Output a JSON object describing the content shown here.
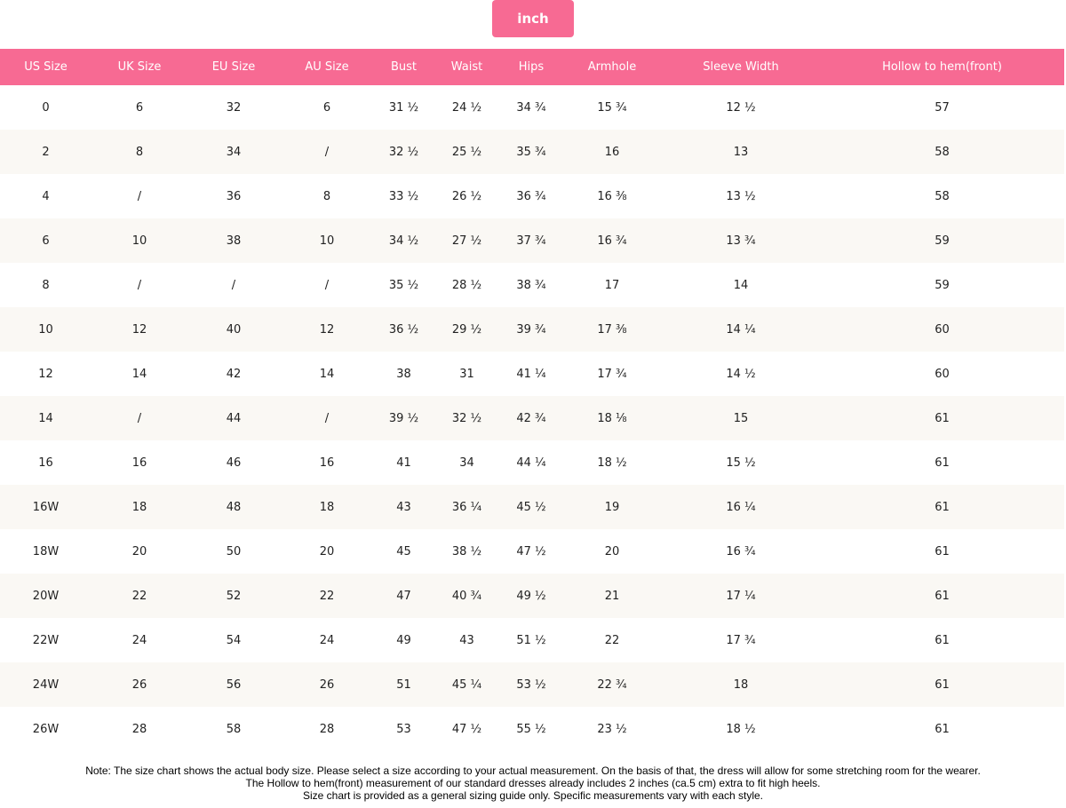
{
  "unit_button": "inch",
  "headers": [
    "US Size",
    "UK Size",
    "EU Size",
    "AU Size",
    "Bust",
    "Waist",
    "Hips",
    "Armhole",
    "Sleeve Width",
    "Hollow to hem(front)"
  ],
  "rows": [
    [
      "0",
      "6",
      "32",
      "6",
      "31 ½",
      "24 ½",
      "34 ¾",
      "15 ¾",
      "12 ½",
      "57"
    ],
    [
      "2",
      "8",
      "34",
      "/",
      "32 ½",
      "25 ½",
      "35 ¾",
      "16",
      "13",
      "58"
    ],
    [
      "4",
      "/",
      "36",
      "8",
      "33 ½",
      "26 ½",
      "36 ¾",
      "16 ⅜",
      "13 ½",
      "58"
    ],
    [
      "6",
      "10",
      "38",
      "10",
      "34 ½",
      "27 ½",
      "37 ¾",
      "16 ¾",
      "13 ¾",
      "59"
    ],
    [
      "8",
      "/",
      "/",
      "/",
      "35 ½",
      "28 ½",
      "38 ¾",
      "17",
      "14",
      "59"
    ],
    [
      "10",
      "12",
      "40",
      "12",
      "36 ½",
      "29 ½",
      "39 ¾",
      "17 ⅜",
      "14 ¼",
      "60"
    ],
    [
      "12",
      "14",
      "42",
      "14",
      "38",
      "31",
      "41 ¼",
      "17 ¾",
      "14 ½",
      "60"
    ],
    [
      "14",
      "/",
      "44",
      "/",
      "39 ½",
      "32 ½",
      "42 ¾",
      "18 ⅛",
      "15",
      "61"
    ],
    [
      "16",
      "16",
      "46",
      "16",
      "41",
      "34",
      "44 ¼",
      "18 ½",
      "15 ½",
      "61"
    ],
    [
      "16W",
      "18",
      "48",
      "18",
      "43",
      "36 ¼",
      "45 ½",
      "19",
      "16 ¼",
      "61"
    ],
    [
      "18W",
      "20",
      "50",
      "20",
      "45",
      "38 ½",
      "47 ½",
      "20",
      "16 ¾",
      "61"
    ],
    [
      "20W",
      "22",
      "52",
      "22",
      "47",
      "40 ¾",
      "49 ½",
      "21",
      "17 ¼",
      "61"
    ],
    [
      "22W",
      "24",
      "54",
      "24",
      "49",
      "43",
      "51 ½",
      "22",
      "17 ¾",
      "61"
    ],
    [
      "24W",
      "26",
      "56",
      "26",
      "51",
      "45 ¼",
      "53 ½",
      "22 ¾",
      "18",
      "61"
    ],
    [
      "26W",
      "28",
      "58",
      "28",
      "53",
      "47 ½",
      "55 ½",
      "23 ½",
      "18 ½",
      "61"
    ]
  ],
  "notes": [
    "Note: The size chart shows the actual body size. Please select a size according to your actual measurement. On the basis of that, the dress will allow for some stretching room for the wearer.",
    "The Hollow to hem(front) measurement of our standard dresses already includes 2 inches (ca.5 cm) extra to fit high heels.",
    "Size chart is provided as a general sizing guide only. Specific measurements vary with each style."
  ]
}
